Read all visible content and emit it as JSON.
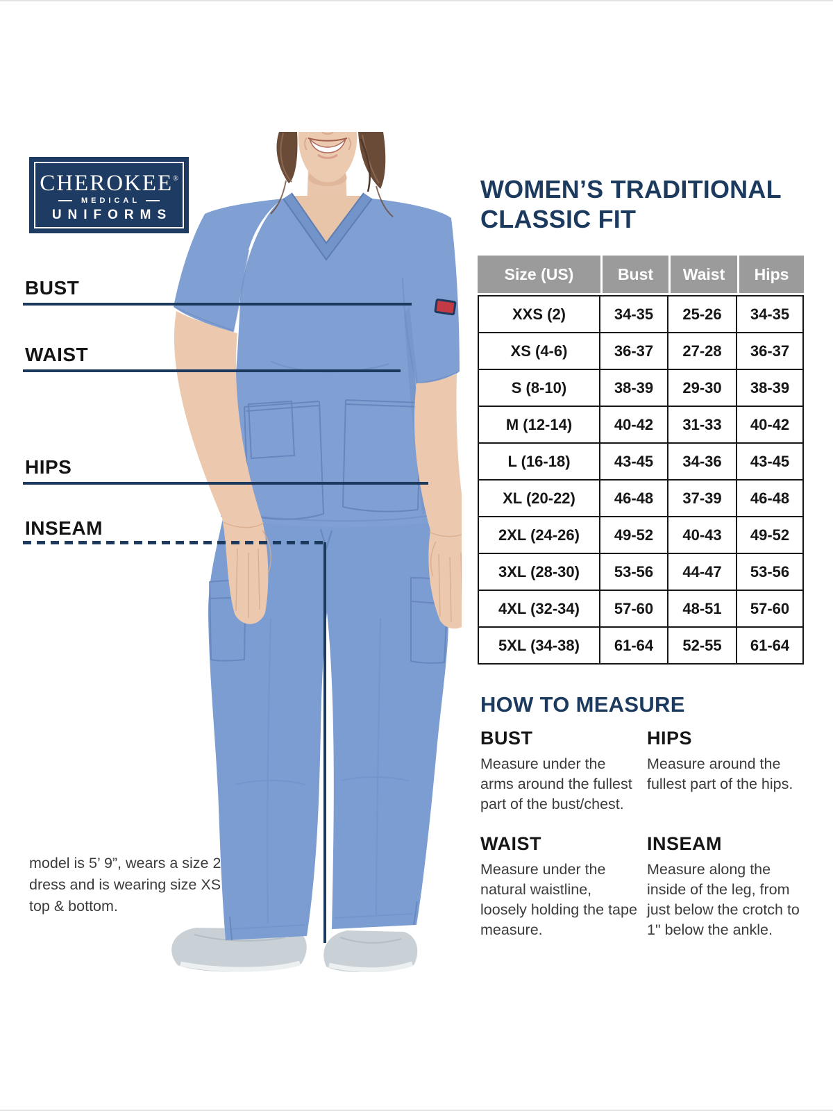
{
  "logo": {
    "brand": "CHEROKEE",
    "reg": "®",
    "division": "MEDICAL",
    "product": "UNIFORMS",
    "bg_color": "#1e3c63"
  },
  "title": {
    "line1": "WOMEN’S TRADITIONAL",
    "line2": "CLASSIC FIT"
  },
  "figure": {
    "description": "model wearing ceil blue scrub top and pants",
    "labels": {
      "bust": "BUST",
      "waist": "WAIST",
      "hips": "HIPS",
      "inseam": "INSEAM"
    },
    "scrub_color": "#80a0d3",
    "line_color": "#1c3a5e"
  },
  "size_table": {
    "headers": [
      "Size (US)",
      "Bust",
      "Waist",
      "Hips"
    ],
    "header_bg": "#9b9b9b",
    "rows": [
      [
        "XXS (2)",
        "34-35",
        "25-26",
        "34-35"
      ],
      [
        "XS (4-6)",
        "36-37",
        "27-28",
        "36-37"
      ],
      [
        "S (8-10)",
        "38-39",
        "29-30",
        "38-39"
      ],
      [
        "M (12-14)",
        "40-42",
        "31-33",
        "40-42"
      ],
      [
        "L (16-18)",
        "43-45",
        "34-36",
        "43-45"
      ],
      [
        "XL (20-22)",
        "46-48",
        "37-39",
        "46-48"
      ],
      [
        "2XL (24-26)",
        "49-52",
        "40-43",
        "49-52"
      ],
      [
        "3XL (28-30)",
        "53-56",
        "44-47",
        "53-56"
      ],
      [
        "4XL (32-34)",
        "57-60",
        "48-51",
        "57-60"
      ],
      [
        "5XL (34-38)",
        "61-64",
        "52-55",
        "61-64"
      ]
    ]
  },
  "how_to_measure": {
    "heading": "HOW TO MEASURE",
    "items": [
      {
        "label": "BUST",
        "text": "Measure under the arms around the fullest part of the bust/chest."
      },
      {
        "label": "HIPS",
        "text": "Measure around the fullest part of the hips."
      },
      {
        "label": "WAIST",
        "text": "Measure under the natural waistline, loosely holding the tape measure."
      },
      {
        "label": "INSEAM",
        "text": "Measure along the inside of the leg, from just below the crotch to 1\" below the ankle."
      }
    ]
  },
  "model_note": {
    "line1": "model is 5’ 9”, wears a size 2",
    "line2": "dress and is wearing size XS",
    "line3": "top & bottom."
  },
  "colors": {
    "navy": "#1c3a5e",
    "table_header_gray": "#9b9b9b",
    "border_black": "#161616",
    "body_text": "#3b3b3b"
  }
}
